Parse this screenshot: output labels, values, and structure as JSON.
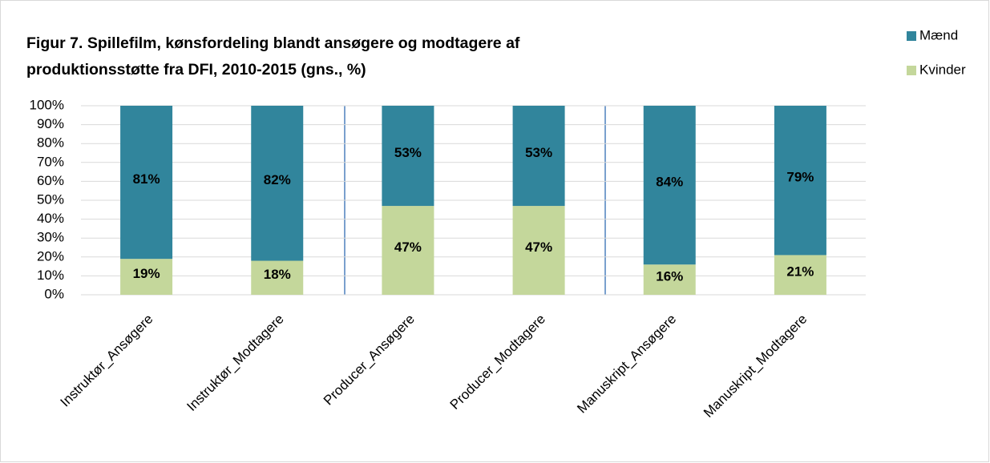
{
  "chart_data": {
    "type": "bar",
    "stacked": true,
    "title": "Figur 7. Spillefilm, kønsfordeling blandt ansøgere og modtagere af produktionsstøtte fra DFI, 2010-2015 (gns., %)",
    "categories": [
      "Instruktør_Ansøgere",
      "Instruktør_Modtagere",
      "Producer_Ansøgere",
      "Producer_Modtagere",
      "Manuskript_Ansøgere",
      "Manuskript_Modtagere"
    ],
    "series": [
      {
        "name": "Kvinder",
        "color": "#c4d79b",
        "values": [
          19,
          18,
          47,
          47,
          16,
          21
        ],
        "value_labels": [
          "19%",
          "18%",
          "47%",
          "47%",
          "16%",
          "21%"
        ]
      },
      {
        "name": "Mænd",
        "color": "#31859c",
        "values": [
          81,
          82,
          53,
          53,
          84,
          79
        ],
        "value_labels": [
          "81%",
          "82%",
          "53%",
          "53%",
          "84%",
          "79%"
        ]
      }
    ],
    "ylim": [
      0,
      100
    ],
    "yticks": [
      {
        "value": 0,
        "label": "0%"
      },
      {
        "value": 10,
        "label": "10%"
      },
      {
        "value": 20,
        "label": "20%"
      },
      {
        "value": 30,
        "label": "30%"
      },
      {
        "value": 40,
        "label": "40%"
      },
      {
        "value": 50,
        "label": "50%"
      },
      {
        "value": 60,
        "label": "60%"
      },
      {
        "value": 70,
        "label": "70%"
      },
      {
        "value": 80,
        "label": "80%"
      },
      {
        "value": 90,
        "label": "90%"
      },
      {
        "value": 100,
        "label": "100%"
      }
    ],
    "grid": true,
    "legend": "top-right"
  }
}
